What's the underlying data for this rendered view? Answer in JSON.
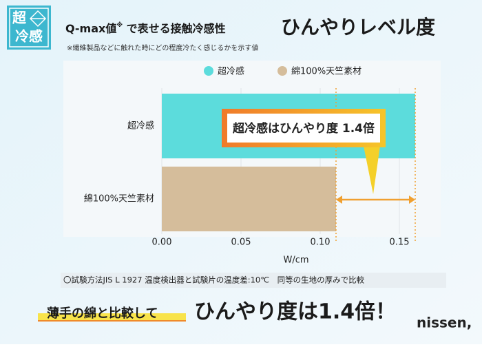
{
  "logo": {
    "top": "超",
    "bottom": "冷感"
  },
  "header": {
    "title_prefix": "Q-max値",
    "title_mark": "※",
    "title_suffix": " で表せる接触冷感性",
    "title_main": "ひんやりレベル度",
    "note": "※繊維製品などに触れた時にどの程度冷たく感じるかを示す値"
  },
  "chart_data": {
    "type": "hbar",
    "categories": [
      "超冷感",
      "綿100%天竺素材"
    ],
    "values": [
      0.16,
      0.11
    ],
    "colors": [
      "#5cdcdc",
      "#d5bd9b"
    ],
    "xlim": [
      0,
      0.175
    ],
    "xticks": [
      {
        "value": 0,
        "label": "0.00"
      },
      0.05,
      {
        "value": 0.1,
        "label": "0.10"
      },
      0.15
    ],
    "xlabel": "W/cm",
    "grid": true,
    "legend": "top",
    "annotation": "超冷感はひんやり度 1.4倍"
  },
  "test_note": "〇試験方法JIS L 1927 温度検出器と試験片の温度差:10℃　同等の生地の厚みで比較",
  "footer": {
    "lead": "薄手の綿と比較して",
    "main": "ひんやり度は1.4倍！",
    "brand": "nissen,"
  }
}
